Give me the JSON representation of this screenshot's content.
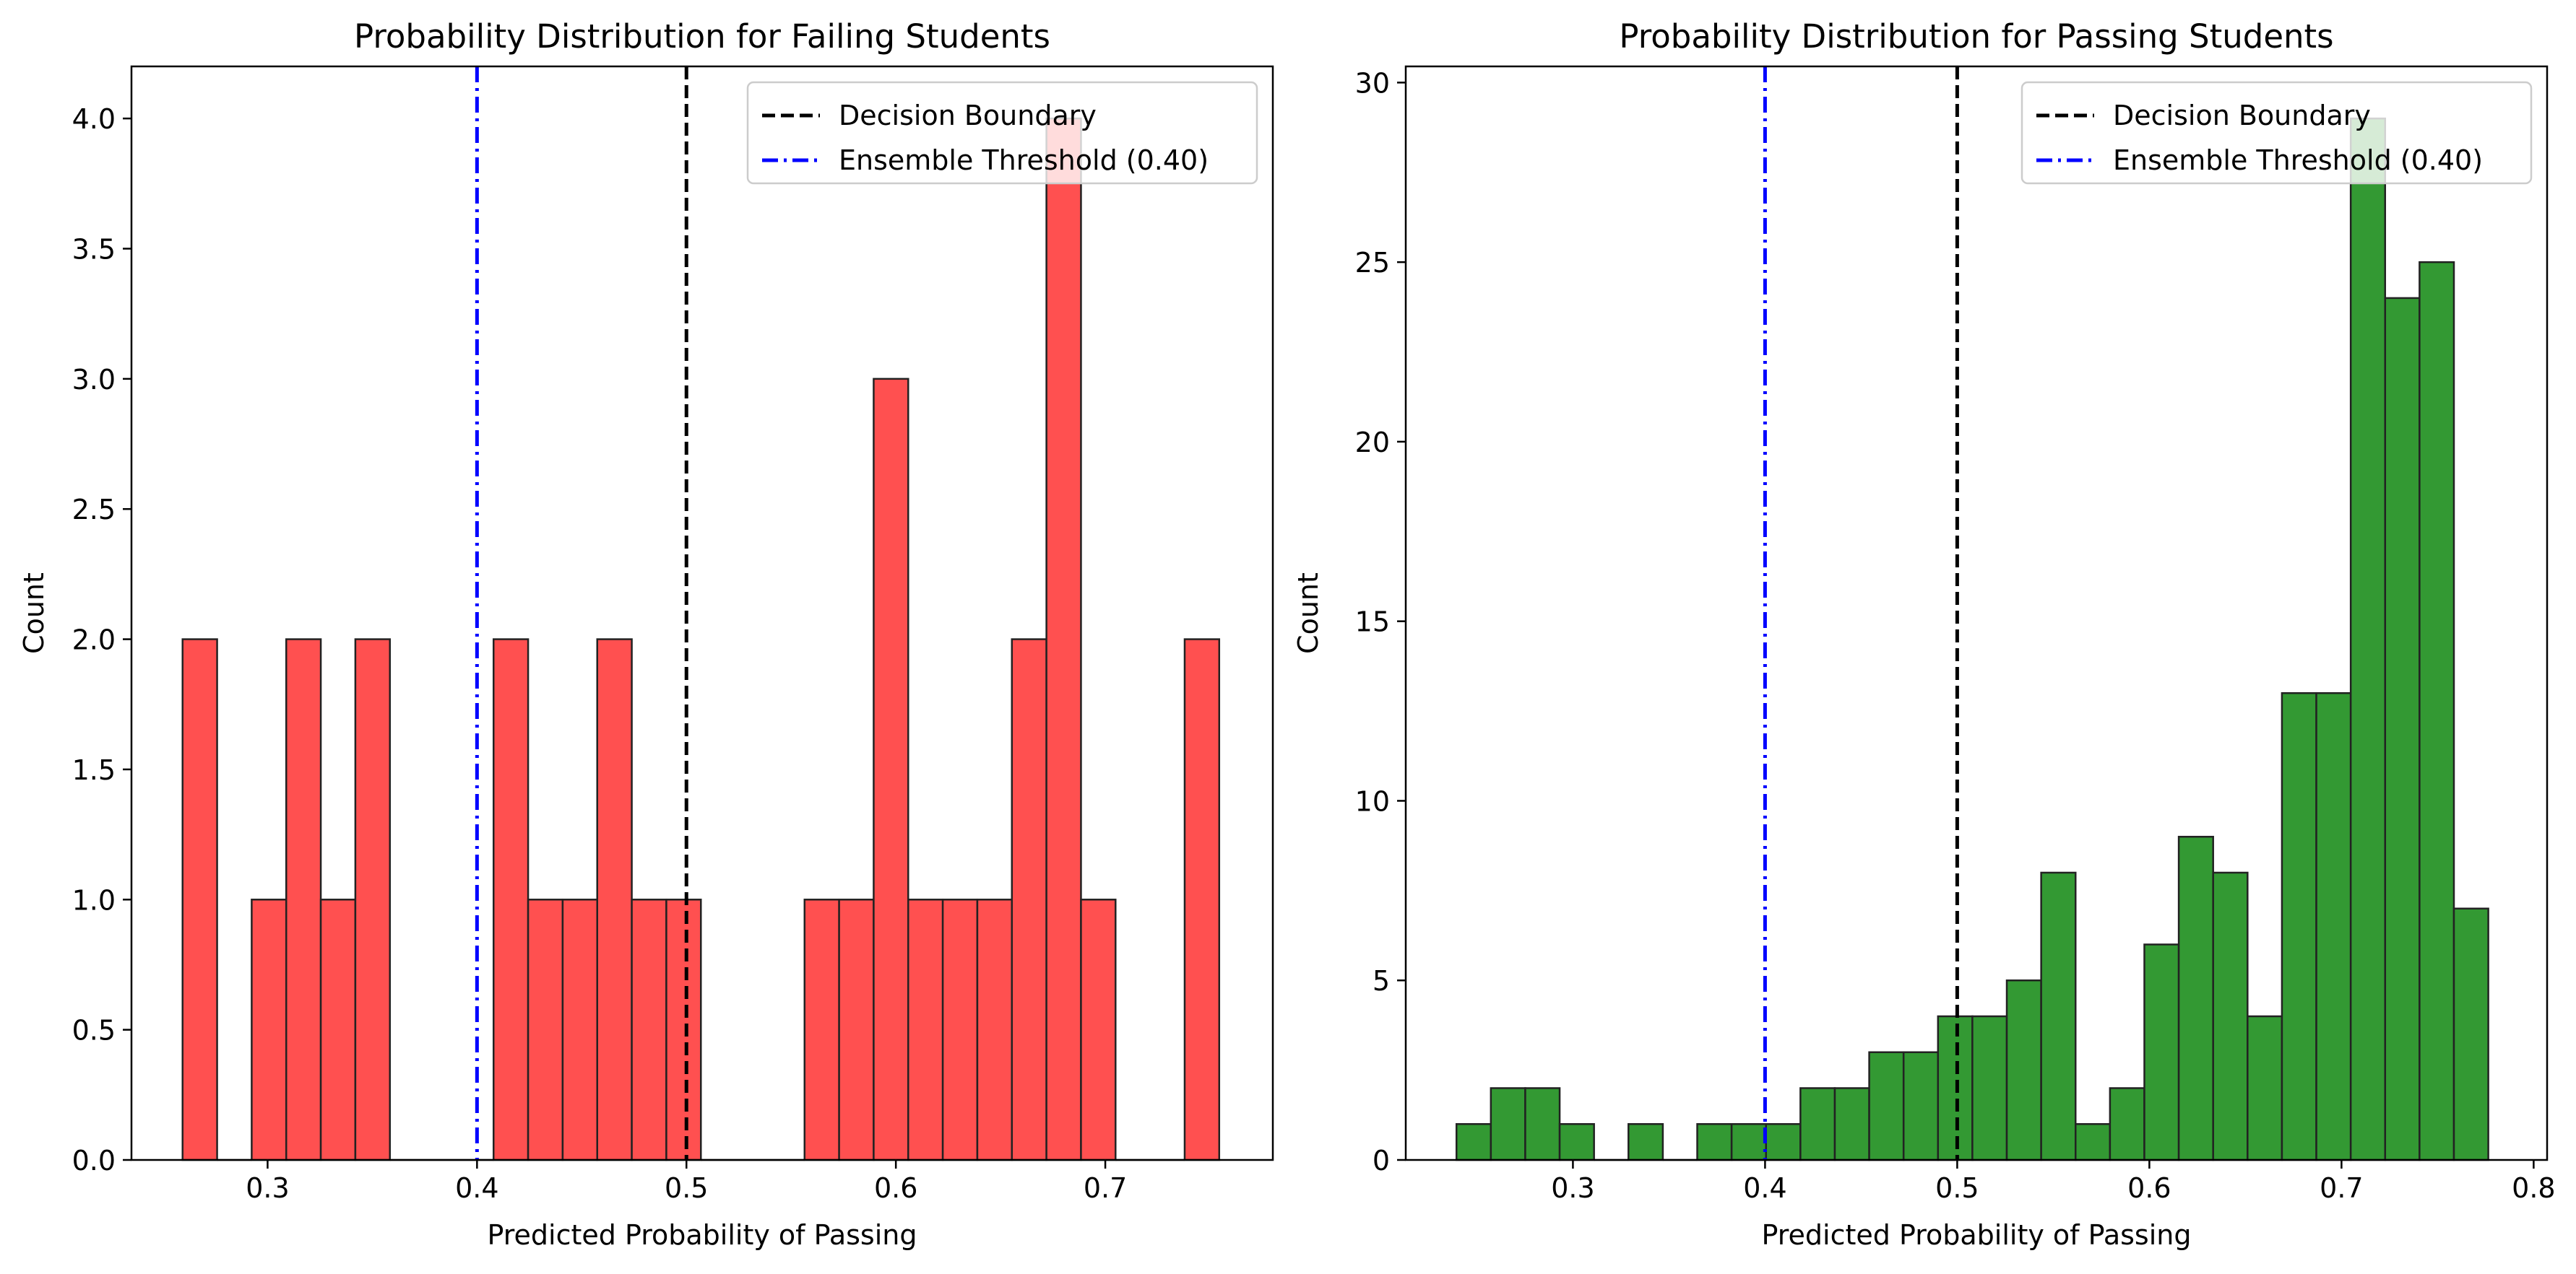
{
  "chart_data": [
    {
      "type": "bar",
      "title": "Probability Distribution for Failing Students",
      "xlabel": "Predicted Probability of Passing",
      "ylabel": "Count",
      "xlim": [
        0.235,
        0.78
      ],
      "ylim": [
        0,
        4.2
      ],
      "xticks": [
        0.3,
        0.4,
        0.5,
        0.6,
        0.7
      ],
      "xtick_labels": [
        "0.3",
        "0.4",
        "0.5",
        "0.6",
        "0.7"
      ],
      "yticks": [
        0.0,
        0.5,
        1.0,
        1.5,
        2.0,
        2.5,
        3.0,
        3.5,
        4.0
      ],
      "ytick_labels": [
        "0.0",
        "0.5",
        "1.0",
        "1.5",
        "2.0",
        "2.5",
        "3.0",
        "3.5",
        "4.0"
      ],
      "bar_color": "#ff5050",
      "bin_edges": [
        0.2594,
        0.2759,
        0.2924,
        0.3089,
        0.3254,
        0.3419,
        0.3584,
        0.3749,
        0.3914,
        0.4079,
        0.4244,
        0.4409,
        0.4574,
        0.4739,
        0.4904,
        0.5069,
        0.5234,
        0.5399,
        0.5564,
        0.5729,
        0.5894,
        0.6059,
        0.6224,
        0.6389,
        0.6554,
        0.6719,
        0.6884,
        0.7049,
        0.7214,
        0.7379,
        0.7544
      ],
      "counts": [
        2,
        0,
        1,
        2,
        1,
        2,
        0,
        0,
        0,
        2,
        1,
        1,
        2,
        1,
        1,
        0,
        0,
        0,
        1,
        1,
        3,
        1,
        1,
        1,
        2,
        4,
        1,
        0,
        0,
        2
      ],
      "vlines": [
        {
          "x": 0.5,
          "style": "dashed",
          "color": "#000000",
          "label": "Decision Boundary"
        },
        {
          "x": 0.4,
          "style": "dashdot",
          "color": "#0000ff",
          "label": "Ensemble Threshold (0.40)"
        }
      ],
      "legend": {
        "placement": "upper-right",
        "entries": [
          "Decision Boundary",
          "Ensemble Threshold (0.40)"
        ]
      },
      "grid": false
    },
    {
      "type": "bar",
      "title": "Probability Distribution for Passing Students",
      "xlabel": "Predicted Probability of Passing",
      "ylabel": "Count",
      "xlim": [
        0.213,
        0.807
      ],
      "ylim": [
        0,
        30.45
      ],
      "xticks": [
        0.3,
        0.4,
        0.5,
        0.6,
        0.7,
        0.8
      ],
      "xtick_labels": [
        "0.3",
        "0.4",
        "0.5",
        "0.6",
        "0.7",
        "0.8"
      ],
      "yticks": [
        0,
        5,
        10,
        15,
        20,
        25,
        30
      ],
      "ytick_labels": [
        "0",
        "5",
        "10",
        "15",
        "20",
        "25",
        "30"
      ],
      "bar_color": "#339933",
      "bin_edges": [
        0.2394,
        0.2573,
        0.2752,
        0.2931,
        0.311,
        0.3289,
        0.3468,
        0.3647,
        0.3826,
        0.4005,
        0.4184,
        0.4363,
        0.4542,
        0.4721,
        0.49,
        0.5079,
        0.5258,
        0.5437,
        0.5616,
        0.5795,
        0.5974,
        0.6153,
        0.6332,
        0.6511,
        0.669,
        0.6869,
        0.7048,
        0.7227,
        0.7406,
        0.7585,
        0.7764
      ],
      "counts": [
        1,
        2,
        2,
        1,
        0,
        1,
        0,
        1,
        1,
        1,
        2,
        2,
        3,
        3,
        4,
        4,
        5,
        8,
        1,
        2,
        6,
        9,
        8,
        4,
        13,
        13,
        29,
        24,
        25,
        7
      ],
      "vlines": [
        {
          "x": 0.5,
          "style": "dashed",
          "color": "#000000",
          "label": "Decision Boundary"
        },
        {
          "x": 0.4,
          "style": "dashdot",
          "color": "#0000ff",
          "label": "Ensemble Threshold (0.40)"
        }
      ],
      "legend": {
        "placement": "upper-right",
        "entries": [
          "Decision Boundary",
          "Ensemble Threshold (0.40)"
        ]
      },
      "grid": false
    }
  ]
}
